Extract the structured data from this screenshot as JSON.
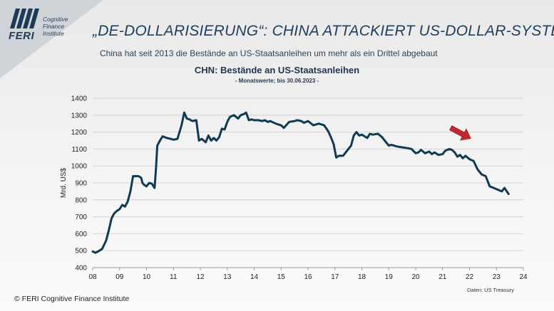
{
  "branding": {
    "logo_name": "FERI",
    "logo_sub": "Cognitive\nFinance\nInstitute",
    "copyright": "© FERI Cognitive Finance Institute"
  },
  "header": {
    "title": "„DE-DOLLARISIERUNG“: CHINA ATTACKIERT US-DOLLAR-SYSTEM",
    "subtitle": "China hat seit 2013 die Bestände an US-Staatsanleihen um mehr als ein Drittel abgebaut"
  },
  "colors": {
    "line": "#0f3a52",
    "arrow": "#c0282d",
    "title": "#1f3e5e"
  },
  "chart_data": {
    "type": "line",
    "title": "CHN: Bestände an US-Staatsanleihen",
    "subtitle": "- Monatswerte; bis 30.06.2023 -",
    "ylabel": "Mrd. US$",
    "xlabel": "",
    "source": "Daten: US Treasury",
    "ylim": [
      400,
      1400
    ],
    "xlim": [
      8,
      24
    ],
    "yticks": [
      "400",
      "500",
      "600",
      "700",
      "800",
      "900",
      "1000",
      "1100",
      "1200",
      "1300",
      "1400"
    ],
    "xticks": [
      "08",
      "09",
      "10",
      "11",
      "12",
      "13",
      "14",
      "15",
      "16",
      "17",
      "18",
      "19",
      "20",
      "21",
      "22",
      "23",
      "24"
    ],
    "grid": "horizontal",
    "annotation": "arrow pointing at early 2022 decline",
    "series": [
      {
        "x": [
          8.0,
          8.1,
          8.2,
          8.35,
          8.5,
          8.6,
          8.7,
          8.8,
          8.9,
          9.0,
          9.1,
          9.2,
          9.3,
          9.4,
          9.5,
          9.6,
          9.7,
          9.8,
          9.85,
          9.9,
          10.0,
          10.1,
          10.2,
          10.3,
          10.35,
          10.4,
          10.5,
          10.6,
          10.75,
          10.9,
          11.0,
          11.15,
          11.3,
          11.4,
          11.5,
          11.6,
          11.7,
          11.85,
          11.95,
          12.05,
          12.2,
          12.3,
          12.4,
          12.5,
          12.6,
          12.7,
          12.8,
          12.9,
          13.0,
          13.1,
          13.25,
          13.4,
          13.5,
          13.6,
          13.7,
          13.8,
          13.9,
          14.0,
          14.15,
          14.3,
          14.4,
          14.5,
          14.6,
          14.8,
          14.9,
          15.0,
          15.1,
          15.3,
          15.5,
          15.6,
          15.75,
          15.85,
          16.0,
          16.2,
          16.4,
          16.6,
          16.75,
          16.85,
          16.95,
          17.05,
          17.15,
          17.3,
          17.45,
          17.6,
          17.7,
          17.8,
          17.9,
          18.0,
          18.1,
          18.2,
          18.3,
          18.4,
          18.6,
          18.75,
          18.9,
          19.0,
          19.1,
          19.3,
          19.5,
          19.7,
          19.85,
          20.0,
          20.1,
          20.2,
          20.35,
          20.5,
          20.6,
          20.7,
          20.85,
          21.0,
          21.1,
          21.25,
          21.35,
          21.45,
          21.55,
          21.65,
          21.75,
          21.85,
          22.0,
          22.15,
          22.3,
          22.45,
          22.6,
          22.75,
          22.9,
          23.05,
          23.2,
          23.3,
          23.45
        ],
        "values": [
          495,
          488,
          495,
          510,
          560,
          620,
          690,
          720,
          735,
          745,
          770,
          760,
          790,
          850,
          940,
          940,
          940,
          930,
          900,
          890,
          880,
          900,
          895,
          870,
          980,
          1120,
          1150,
          1175,
          1165,
          1160,
          1155,
          1160,
          1240,
          1315,
          1280,
          1275,
          1265,
          1270,
          1150,
          1160,
          1140,
          1180,
          1150,
          1165,
          1150,
          1170,
          1220,
          1215,
          1260,
          1290,
          1300,
          1280,
          1300,
          1305,
          1315,
          1270,
          1275,
          1270,
          1270,
          1265,
          1270,
          1260,
          1265,
          1250,
          1245,
          1240,
          1225,
          1260,
          1265,
          1270,
          1265,
          1255,
          1265,
          1240,
          1250,
          1240,
          1205,
          1170,
          1130,
          1050,
          1060,
          1060,
          1090,
          1120,
          1180,
          1200,
          1180,
          1185,
          1175,
          1165,
          1190,
          1185,
          1190,
          1170,
          1140,
          1120,
          1125,
          1115,
          1110,
          1105,
          1100,
          1075,
          1080,
          1095,
          1075,
          1085,
          1070,
          1080,
          1065,
          1070,
          1090,
          1100,
          1095,
          1080,
          1055,
          1065,
          1045,
          1060,
          1040,
          1030,
          980,
          950,
          940,
          880,
          870,
          860,
          850,
          870,
          835
        ]
      }
    ]
  }
}
